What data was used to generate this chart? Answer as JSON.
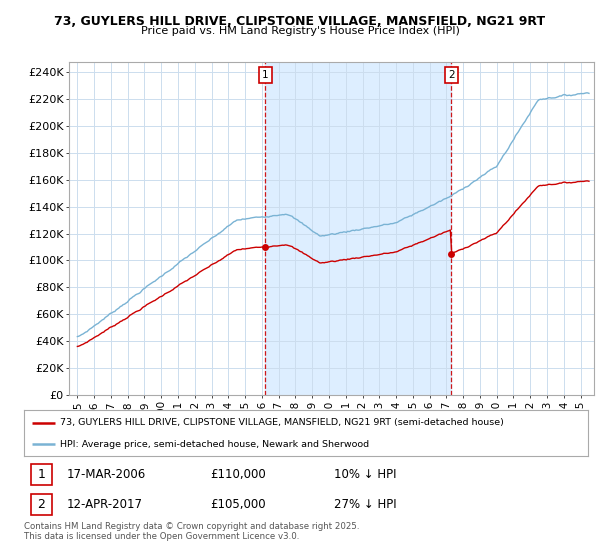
{
  "title1": "73, GUYLERS HILL DRIVE, CLIPSTONE VILLAGE, MANSFIELD, NG21 9RT",
  "title2": "Price paid vs. HM Land Registry's House Price Index (HPI)",
  "legend_line1": "73, GUYLERS HILL DRIVE, CLIPSTONE VILLAGE, MANSFIELD, NG21 9RT (semi-detached house)",
  "legend_line2": "HPI: Average price, semi-detached house, Newark and Sherwood",
  "footnote": "Contains HM Land Registry data © Crown copyright and database right 2025.\nThis data is licensed under the Open Government Licence v3.0.",
  "sale1_date": "17-MAR-2006",
  "sale1_price": 110000,
  "sale2_date": "12-APR-2017",
  "sale2_price": 105000,
  "sale1_note": "10% ↓ HPI",
  "sale2_note": "27% ↓ HPI",
  "hpi_color": "#7ab3d4",
  "price_color": "#cc0000",
  "shade_color": "#ddeeff",
  "ylim_max": 240000,
  "ytick_values": [
    0,
    20000,
    40000,
    60000,
    80000,
    100000,
    120000,
    140000,
    160000,
    180000,
    200000,
    220000,
    240000
  ],
  "ytick_labels": [
    "£0",
    "£20K",
    "£40K",
    "£60K",
    "£80K",
    "£100K",
    "£120K",
    "£140K",
    "£160K",
    "£180K",
    "£200K",
    "£220K",
    "£240K"
  ],
  "xstart": 1995,
  "xend": 2025,
  "sale1_t": 2006.21,
  "sale2_t": 2017.28,
  "grid_color": "#ccddee",
  "border_color": "#aaaaaa"
}
